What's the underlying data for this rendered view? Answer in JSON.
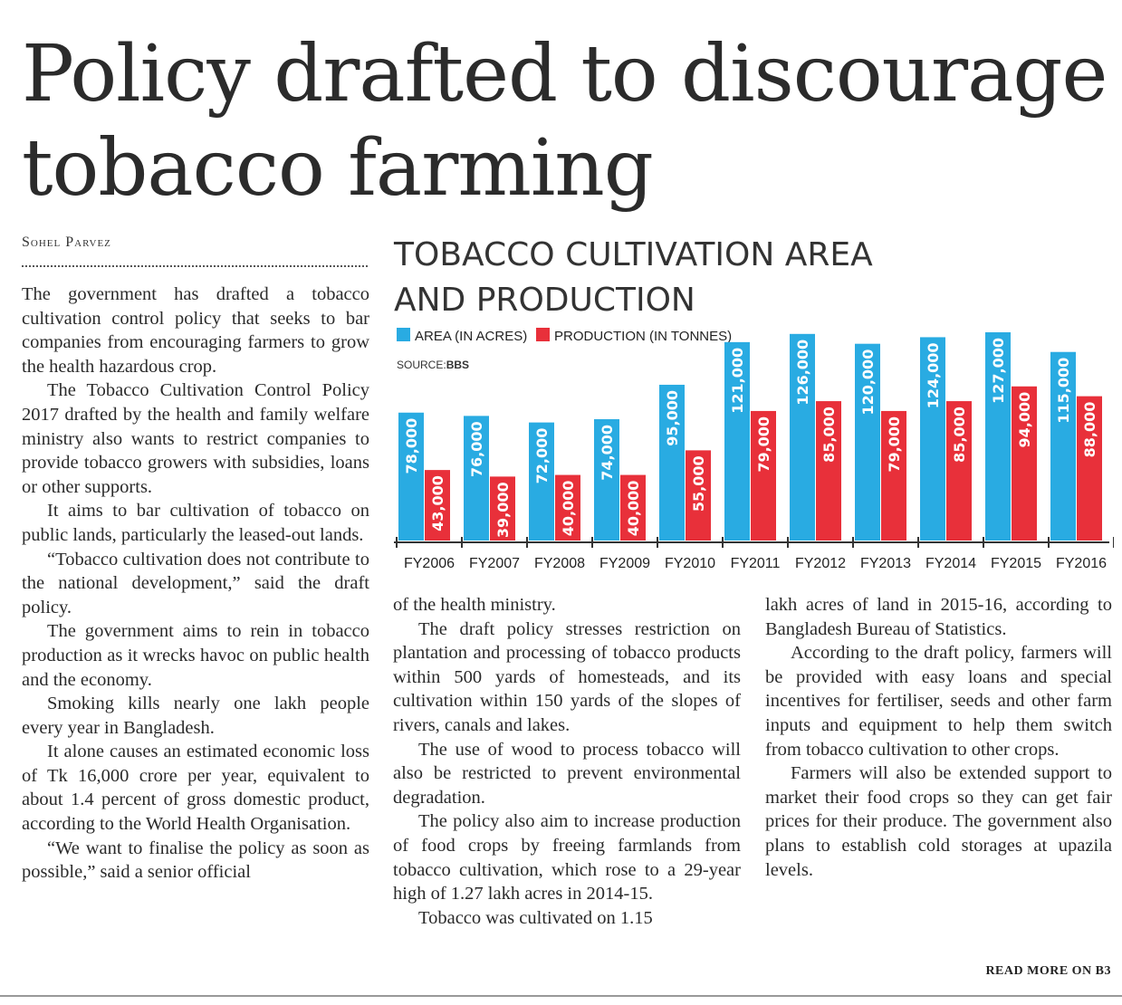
{
  "headline": {
    "line1": "Policy drafted to discourage",
    "line2": "tobacco farming"
  },
  "byline": "Sohel Parvez",
  "column1": [
    "The government has drafted a tobacco cultivation control policy that seeks to bar companies from encouraging farmers to grow the health hazardous crop.",
    "The Tobacco Cultivation Control Policy 2017 drafted by the health and family welfare ministry also wants to restrict companies to provide tobacco growers with subsidies, loans or other supports.",
    "It aims to bar cultivation of tobacco on public lands, particularly the leased-out lands.",
    "“Tobacco cultivation does not contribute to the national development,” said the draft policy.",
    "The government aims to rein in tobacco production as it wrecks havoc on public health and the economy.",
    "Smoking kills nearly one lakh people every year in Bangladesh.",
    "It alone causes an estimated economic loss of Tk 16,000 crore per year, equivalent to about 1.4 percent of gross domestic product, according to the World Health Organisation.",
    "“We want to finalise the policy as soon as possible,” said a senior official"
  ],
  "column2": [
    "of the health ministry.",
    "The draft policy stresses restriction on plantation and processing of tobacco products within 500 yards of homesteads, and its cultivation within 150 yards of the slopes of rivers, canals and lakes.",
    "The use of wood to process tobacco will also be restricted to prevent environmental degradation.",
    "The policy also aim to increase production of food crops by freeing farmlands from tobacco cultivation, which rose to a 29-year high of 1.27 lakh acres in 2014-15.",
    "Tobacco was cultivated on 1.15"
  ],
  "column3": [
    "lakh acres of land in 2015-16, according to Bangladesh Bureau of Statistics.",
    "According to the draft policy, farmers will be provided with easy loans and special incentives for fertiliser, seeds and other farm inputs and equipment to help them switch from tobacco cultivation to other crops.",
    "Farmers will also be extended support to market their food crops so they can get fair prices for their produce. The government also plans to establish cold storages at upazila levels."
  ],
  "read_more": "READ MORE ON B3",
  "chart_data": {
    "type": "bar",
    "title_line1": "TOBACCO CULTIVATION AREA",
    "title_line2": "AND PRODUCTION",
    "source_label": "SOURCE:",
    "source": "BBS",
    "categories": [
      "FY2006",
      "FY2007",
      "FY2008",
      "FY2009",
      "FY2010",
      "FY2011",
      "FY2012",
      "FY2013",
      "FY2014",
      "FY2015",
      "FY2016"
    ],
    "series": [
      {
        "name": "AREA (IN ACRES)",
        "color": "#29abe2",
        "values": [
          78000,
          76000,
          72000,
          74000,
          95000,
          121000,
          126000,
          120000,
          124000,
          127000,
          115000
        ]
      },
      {
        "name": "PRODUCTION (IN TONNES)",
        "color": "#e8303a",
        "values": [
          43000,
          39000,
          40000,
          40000,
          55000,
          79000,
          85000,
          79000,
          85000,
          94000,
          88000
        ]
      }
    ],
    "value_labels": [
      [
        "78,000",
        "76,000",
        "72,000",
        "74,000",
        "95,000",
        "121,000",
        "126,000",
        "120,000",
        "124,000",
        "127,000",
        "115,000"
      ],
      [
        "43,000",
        "39,000",
        "40,000",
        "40,000",
        "55,000",
        "79,000",
        "85,000",
        "79,000",
        "85,000",
        "94,000",
        "88,000"
      ]
    ],
    "ylim": [
      0,
      127000
    ],
    "xlabel": "",
    "ylabel": ""
  }
}
